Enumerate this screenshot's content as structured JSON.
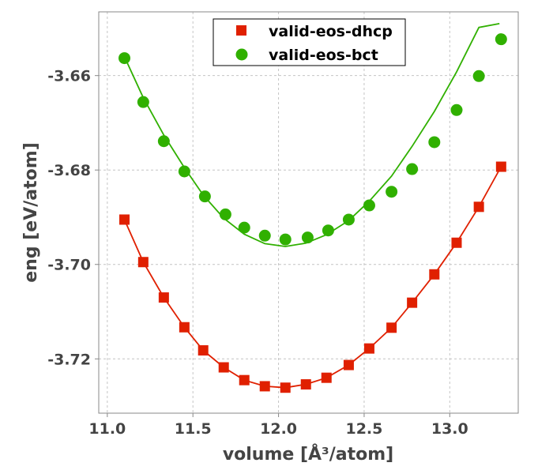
{
  "chart_data": {
    "type": "scatter",
    "xlabel": "volume [Å³/atom]",
    "ylabel": "eng [eV/atom]",
    "xlim": [
      10.95,
      13.4
    ],
    "ylim": [
      -3.7315,
      -3.6465
    ],
    "xticks": [
      11.0,
      11.5,
      12.0,
      12.5,
      13.0
    ],
    "xtick_labels": [
      "11.0",
      "11.5",
      "12.0",
      "12.5",
      "13.0"
    ],
    "yticks": [
      -3.66,
      -3.68,
      -3.7,
      -3.72
    ],
    "ytick_labels": [
      "-3.66",
      "-3.68",
      "-3.70",
      "-3.72"
    ],
    "grid": true,
    "legend_position": "top-center",
    "series": [
      {
        "name": "valid-eos-dhcp",
        "marker": "square",
        "color": "#e02000",
        "points": [
          [
            11.1,
            -3.6905
          ],
          [
            11.21,
            -3.6995
          ],
          [
            11.33,
            -3.707
          ],
          [
            11.45,
            -3.7133
          ],
          [
            11.56,
            -3.7182
          ],
          [
            11.68,
            -3.7218
          ],
          [
            11.8,
            -3.7245
          ],
          [
            11.92,
            -3.7258
          ],
          [
            12.04,
            -3.7261
          ],
          [
            12.16,
            -3.7254
          ],
          [
            12.28,
            -3.724
          ],
          [
            12.41,
            -3.7213
          ],
          [
            12.53,
            -3.7178
          ],
          [
            12.66,
            -3.7134
          ],
          [
            12.78,
            -3.7081
          ],
          [
            12.91,
            -3.7021
          ],
          [
            13.04,
            -3.6954
          ],
          [
            13.17,
            -3.6878
          ],
          [
            13.3,
            -3.6793
          ]
        ],
        "fit": [
          [
            11.1,
            -3.6905
          ],
          [
            11.21,
            -3.6995
          ],
          [
            11.33,
            -3.707
          ],
          [
            11.45,
            -3.7133
          ],
          [
            11.56,
            -3.7182
          ],
          [
            11.68,
            -3.7218
          ],
          [
            11.8,
            -3.7245
          ],
          [
            11.92,
            -3.7258
          ],
          [
            12.04,
            -3.7261
          ],
          [
            12.16,
            -3.7254
          ],
          [
            12.28,
            -3.724
          ],
          [
            12.41,
            -3.7213
          ],
          [
            12.53,
            -3.7178
          ],
          [
            12.66,
            -3.7134
          ],
          [
            12.78,
            -3.7081
          ],
          [
            12.91,
            -3.7021
          ],
          [
            13.04,
            -3.6954
          ],
          [
            13.17,
            -3.6878
          ],
          [
            13.3,
            -3.6793
          ]
        ]
      },
      {
        "name": "valid-eos-bct",
        "marker": "circle",
        "color": "#30b000",
        "points": [
          [
            11.1,
            -3.6563
          ],
          [
            11.21,
            -3.6656
          ],
          [
            11.33,
            -3.6739
          ],
          [
            11.45,
            -3.6803
          ],
          [
            11.57,
            -3.6856
          ],
          [
            11.69,
            -3.6894
          ],
          [
            11.8,
            -3.6922
          ],
          [
            11.92,
            -3.6939
          ],
          [
            12.04,
            -3.6947
          ],
          [
            12.17,
            -3.6943
          ],
          [
            12.29,
            -3.6928
          ],
          [
            12.41,
            -3.6905
          ],
          [
            12.53,
            -3.6875
          ],
          [
            12.66,
            -3.6846
          ],
          [
            12.78,
            -3.6798
          ],
          [
            12.91,
            -3.6741
          ],
          [
            13.04,
            -3.6673
          ],
          [
            13.17,
            -3.6601
          ],
          [
            13.3,
            -3.6523
          ]
        ],
        "fit": [
          [
            11.1,
            -3.656
          ],
          [
            11.21,
            -3.6647
          ],
          [
            11.33,
            -3.6726
          ],
          [
            11.45,
            -3.6795
          ],
          [
            11.56,
            -3.6853
          ],
          [
            11.68,
            -3.6902
          ],
          [
            11.8,
            -3.6936
          ],
          [
            11.92,
            -3.6956
          ],
          [
            12.04,
            -3.6962
          ],
          [
            12.16,
            -3.6955
          ],
          [
            12.28,
            -3.6937
          ],
          [
            12.41,
            -3.6907
          ],
          [
            12.53,
            -3.6866
          ],
          [
            12.66,
            -3.6813
          ],
          [
            12.78,
            -3.675
          ],
          [
            12.91,
            -3.6676
          ],
          [
            13.04,
            -3.6592
          ],
          [
            13.17,
            -3.6498
          ],
          [
            13.29,
            -3.649
          ]
        ]
      }
    ]
  }
}
